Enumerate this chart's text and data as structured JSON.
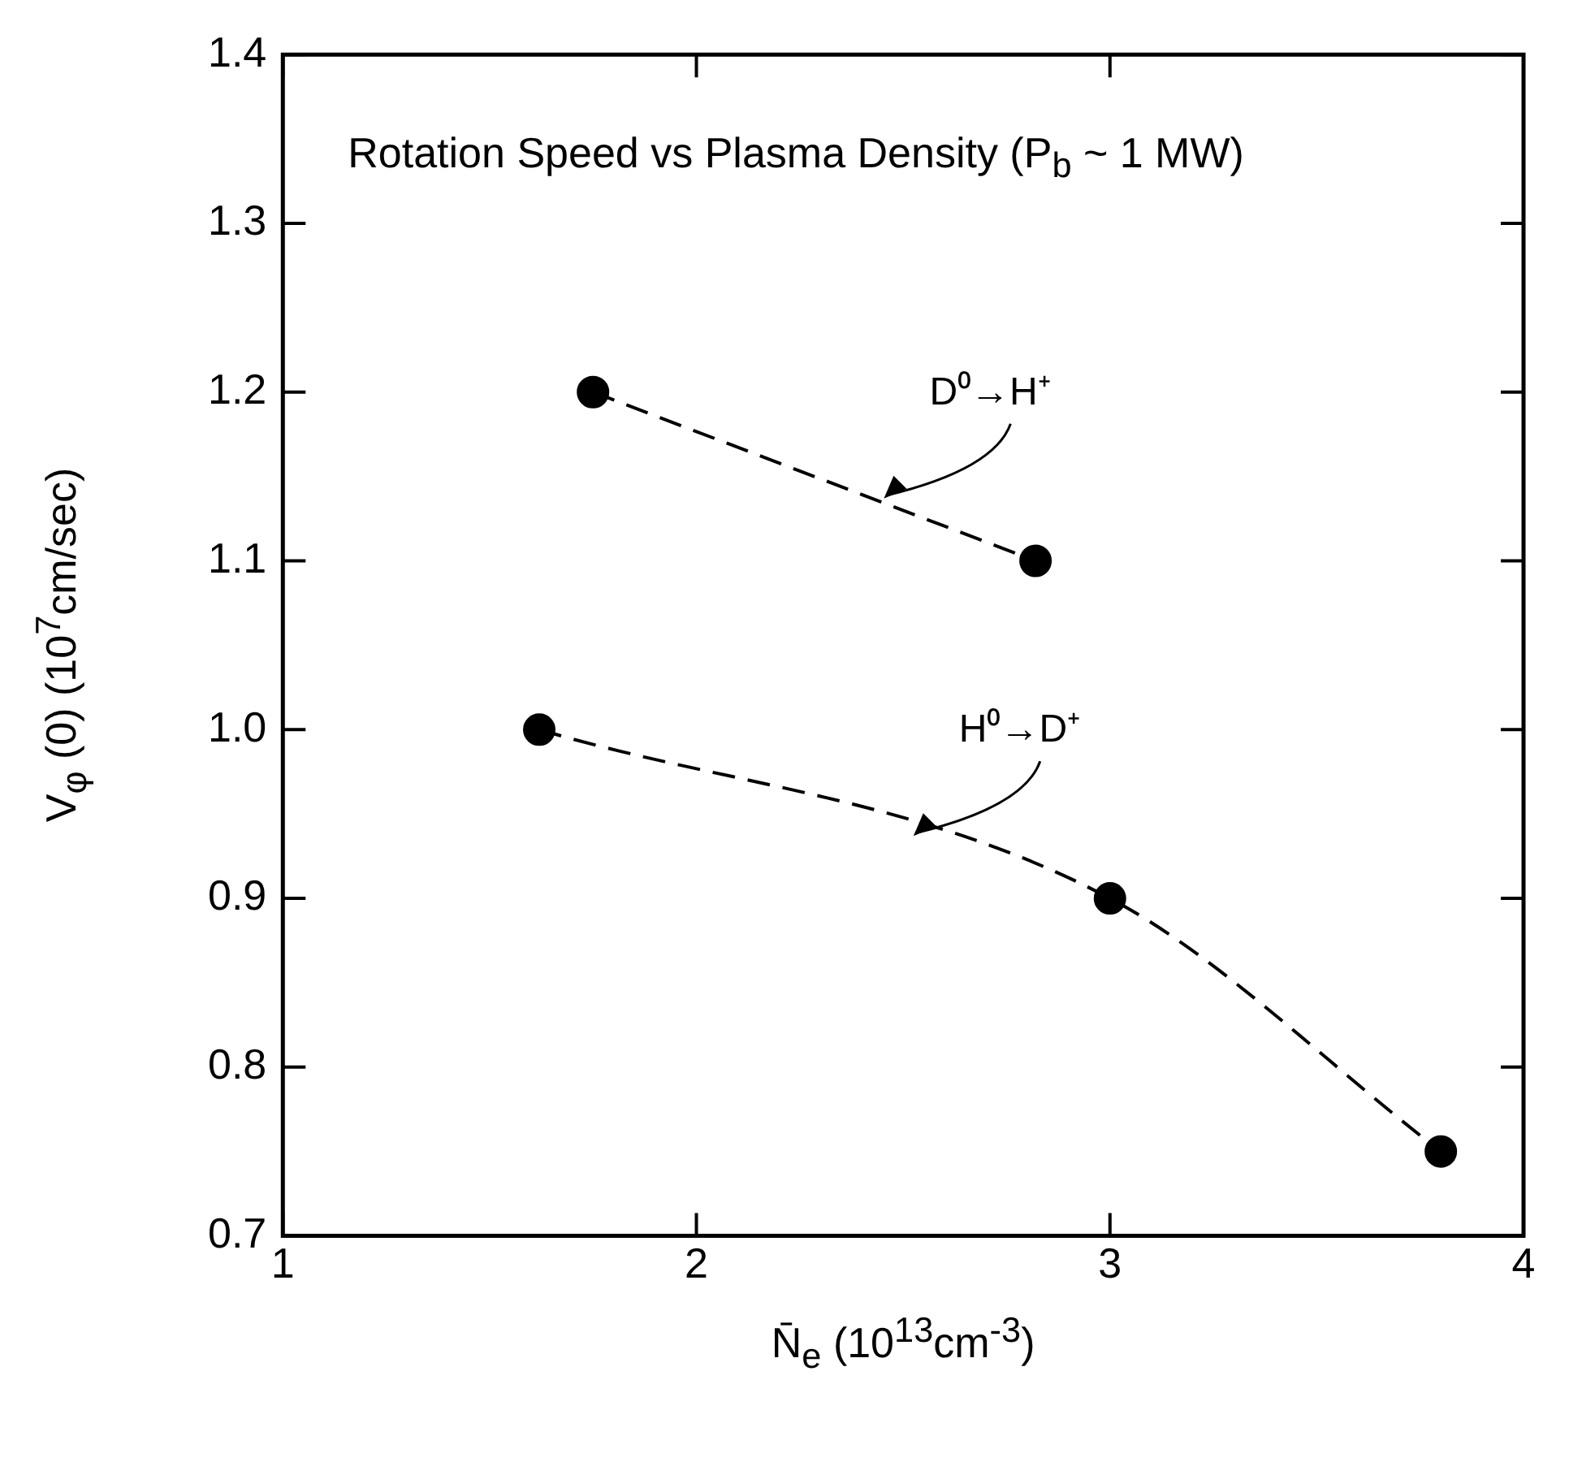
{
  "chart_data": {
    "type": "line",
    "title": "Rotation Speed vs Plasma Density (P$_{b}$ ~ 1 MW)",
    "xlabel": "N̄$_{e}$ (10$^{13}$cm$^{-3}$)",
    "ylabel": "V$_{φ}$ (0) (10$^{7}$cm/sec)",
    "xlim": [
      1,
      4
    ],
    "xticks": [
      1,
      2,
      3,
      4
    ],
    "ylim": [
      0.7,
      1.4
    ],
    "yticks": [
      0.7,
      0.8,
      0.9,
      {
        "value": 1,
        "label": "1.0"
      },
      1.1,
      1.2,
      1.3,
      1.4
    ],
    "grid": false,
    "legend": false,
    "marker": "circle",
    "line_style": "dashed",
    "series": [
      {
        "name": "D⁰→H⁺",
        "color": "#000000",
        "x": [
          1.75,
          2.82
        ],
        "values": [
          1.2,
          1.1
        ]
      },
      {
        "name": "H⁰→D⁺",
        "color": "#000000",
        "x": [
          1.62,
          3.0,
          3.8
        ],
        "values": [
          1.0,
          0.9,
          0.75
        ]
      }
    ]
  }
}
